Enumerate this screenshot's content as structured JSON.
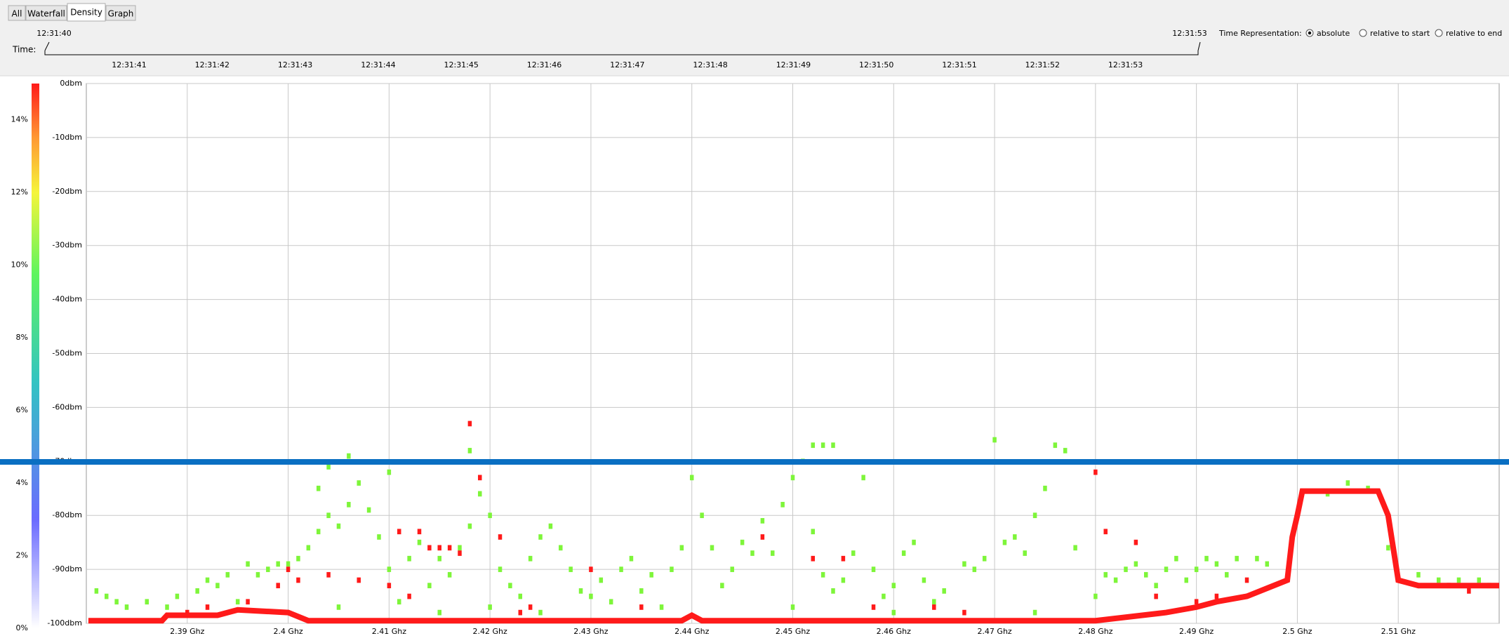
{
  "ui": {
    "tabs": [
      "All",
      "Waterfall",
      "Density",
      "Graph"
    ],
    "time": {
      "label": "Time:",
      "start": "12:31:40",
      "end": "12:31:53",
      "ticks": [
        "12:31:41",
        "12:31:42",
        "12:31:43",
        "12:31:44",
        "12:31:45",
        "12:31:46",
        "12:31:47",
        "12:31:48",
        "12:31:49",
        "12:31:50",
        "12:31:51",
        "12:31:52",
        "12:31:53"
      ]
    },
    "representation": {
      "label": "Time Representation:",
      "options": [
        "absolute",
        "relative to start",
        "relative to end"
      ]
    }
  },
  "chart_data": {
    "type": "density",
    "xlim": [
      2.38,
      2.52
    ],
    "xticks": [
      {
        "value": 2.39,
        "label": "2.39 Ghz"
      },
      {
        "value": 2.4,
        "label": "2.4 Ghz"
      },
      {
        "value": 2.41,
        "label": "2.41 Ghz"
      },
      {
        "value": 2.42,
        "label": "2.42 Ghz"
      },
      {
        "value": 2.43,
        "label": "2.43 Ghz"
      },
      {
        "value": 2.44,
        "label": "2.44 Ghz"
      },
      {
        "value": 2.45,
        "label": "2.45 Ghz"
      },
      {
        "value": 2.46,
        "label": "2.46 Ghz"
      },
      {
        "value": 2.47,
        "label": "2.47 Ghz"
      },
      {
        "value": 2.48,
        "label": "2.48 Ghz"
      },
      {
        "value": 2.49,
        "label": "2.49 Ghz"
      },
      {
        "value": 2.5,
        "label": "2.5 Ghz"
      },
      {
        "value": 2.51,
        "label": "2.51 Ghz"
      }
    ],
    "ylim": [
      -100,
      0
    ],
    "yticks": [
      {
        "value": 0,
        "label": "0dbm"
      },
      {
        "value": -10,
        "label": "-10dbm"
      },
      {
        "value": -20,
        "label": "-20dbm"
      },
      {
        "value": -30,
        "label": "-30dbm"
      },
      {
        "value": -40,
        "label": "-40dbm"
      },
      {
        "value": -50,
        "label": "-50dbm"
      },
      {
        "value": -60,
        "label": "-60dbm"
      },
      {
        "value": -70,
        "label": "-70dbm"
      },
      {
        "value": -80,
        "label": "-80dbm"
      },
      {
        "value": -90,
        "label": "-90dbm"
      },
      {
        "value": -100,
        "label": "-100dbm"
      }
    ],
    "clim": [
      0,
      15
    ],
    "cticks": [
      {
        "value": 0,
        "label": "0%"
      },
      {
        "value": 2,
        "label": "2%"
      },
      {
        "value": 4,
        "label": "4%"
      },
      {
        "value": 6,
        "label": "6%"
      },
      {
        "value": 8,
        "label": "8%"
      },
      {
        "value": 10,
        "label": "10%"
      },
      {
        "value": 12,
        "label": "12%"
      },
      {
        "value": 14,
        "label": "14%"
      }
    ],
    "grid": true,
    "series": [
      {
        "kind": "cells",
        "color": "#7ef53a",
        "x": [
          2.381,
          2.382,
          2.383,
          2.384,
          2.386,
          2.388,
          2.389,
          2.391,
          2.392,
          2.393,
          2.394,
          2.396,
          2.397,
          2.398,
          2.399,
          2.4,
          2.401,
          2.402,
          2.403,
          2.403,
          2.404,
          2.405,
          2.406,
          2.404,
          2.406,
          2.407,
          2.408,
          2.409,
          2.41,
          2.41,
          2.411,
          2.412,
          2.413,
          2.414,
          2.415,
          2.416,
          2.417,
          2.418,
          2.418,
          2.419,
          2.42,
          2.421,
          2.422,
          2.423,
          2.424,
          2.425,
          2.426,
          2.427,
          2.428,
          2.429,
          2.43,
          2.431,
          2.432,
          2.433,
          2.434,
          2.435,
          2.436,
          2.437,
          2.438,
          2.439,
          2.44,
          2.441,
          2.442,
          2.443,
          2.444,
          2.445,
          2.446,
          2.447,
          2.448,
          2.449,
          2.45,
          2.451,
          2.452,
          2.453,
          2.454,
          2.452,
          2.453,
          2.454,
          2.455,
          2.456,
          2.457,
          2.458,
          2.459,
          2.46,
          2.461,
          2.462,
          2.463,
          2.464,
          2.465,
          2.467,
          2.468,
          2.469,
          2.47,
          2.471,
          2.472,
          2.473,
          2.474,
          2.475,
          2.476,
          2.477,
          2.478,
          2.48,
          2.481,
          2.482,
          2.483,
          2.484,
          2.485,
          2.486,
          2.487,
          2.488,
          2.489,
          2.49,
          2.491,
          2.492,
          2.493,
          2.494,
          2.496,
          2.497,
          2.503,
          2.505,
          2.507,
          2.509,
          2.512,
          2.514,
          2.516,
          2.518,
          2.519,
          2.42,
          2.425,
          2.45,
          2.46,
          2.395,
          2.405,
          2.415,
          2.474
        ],
        "values": [
          -94,
          -95,
          -96,
          -97,
          -96,
          -97,
          -95,
          -94,
          -92,
          -93,
          -91,
          -89,
          -91,
          -90,
          -89,
          -89,
          -88,
          -86,
          -83,
          -75,
          -80,
          -82,
          -78,
          -71,
          -69,
          -74,
          -79,
          -84,
          -72,
          -90,
          -96,
          -88,
          -85,
          -93,
          -88,
          -91,
          -86,
          -82,
          -68,
          -76,
          -80,
          -90,
          -93,
          -95,
          -88,
          -84,
          -82,
          -86,
          -90,
          -94,
          -95,
          -92,
          -96,
          -90,
          -88,
          -94,
          -91,
          -97,
          -90,
          -86,
          -73,
          -80,
          -86,
          -93,
          -90,
          -85,
          -87,
          -81,
          -87,
          -78,
          -73,
          -70,
          -67,
          -67,
          -67,
          -83,
          -91,
          -94,
          -92,
          -87,
          -73,
          -90,
          -95,
          -93,
          -87,
          -85,
          -92,
          -96,
          -94,
          -89,
          -90,
          -88,
          -66,
          -85,
          -84,
          -87,
          -80,
          -75,
          -67,
          -68,
          -86,
          -95,
          -91,
          -92,
          -90,
          -89,
          -91,
          -93,
          -90,
          -88,
          -92,
          -90,
          -88,
          -89,
          -91,
          -88,
          -88,
          -89,
          -76,
          -74,
          -75,
          -86,
          -91,
          -92,
          -92,
          -92,
          -93,
          -97,
          -98,
          -97,
          -98,
          -96,
          -97,
          -98,
          -98
        ]
      },
      {
        "kind": "cells",
        "color": "#ff1a1a",
        "x": [
          2.39,
          2.392,
          2.396,
          2.399,
          2.4,
          2.401,
          2.404,
          2.407,
          2.41,
          2.411,
          2.412,
          2.413,
          2.414,
          2.415,
          2.416,
          2.417,
          2.418,
          2.419,
          2.421,
          2.423,
          2.424,
          2.43,
          2.435,
          2.447,
          2.452,
          2.455,
          2.458,
          2.464,
          2.467,
          2.48,
          2.481,
          2.484,
          2.486,
          2.49,
          2.492,
          2.495,
          2.515,
          2.517
        ],
        "values": [
          -98,
          -97,
          -96,
          -93,
          -90,
          -92,
          -91,
          -92,
          -93,
          -83,
          -95,
          -83,
          -86,
          -86,
          -86,
          -87,
          -63,
          -73,
          -84,
          -98,
          -97,
          -90,
          -97,
          -84,
          -88,
          -88,
          -97,
          -97,
          -98,
          -72,
          -83,
          -85,
          -95,
          -96,
          -95,
          -92,
          -93,
          -94
        ]
      },
      {
        "kind": "line",
        "color": "#ff1a1a",
        "x": [
          2.3802,
          2.3875,
          2.388,
          2.393,
          2.395,
          2.4,
          2.402,
          2.42,
          2.439,
          2.44,
          2.441,
          2.48,
          2.487,
          2.49,
          2.492,
          2.495,
          2.497,
          2.499,
          2.4995,
          2.5,
          2.5005,
          2.508,
          2.509,
          2.5095,
          2.51,
          2.512,
          2.52
        ],
        "values": [
          -99.5,
          -99.5,
          -98.5,
          -98.5,
          -97.5,
          -98,
          -99.5,
          -99.5,
          -99.5,
          -98.5,
          -99.5,
          -99.5,
          -98,
          -97,
          -96,
          -95,
          -93.5,
          -92,
          -84,
          -80,
          -75.5,
          -75.5,
          -80,
          -86,
          -92,
          -93,
          -93
        ]
      }
    ]
  }
}
